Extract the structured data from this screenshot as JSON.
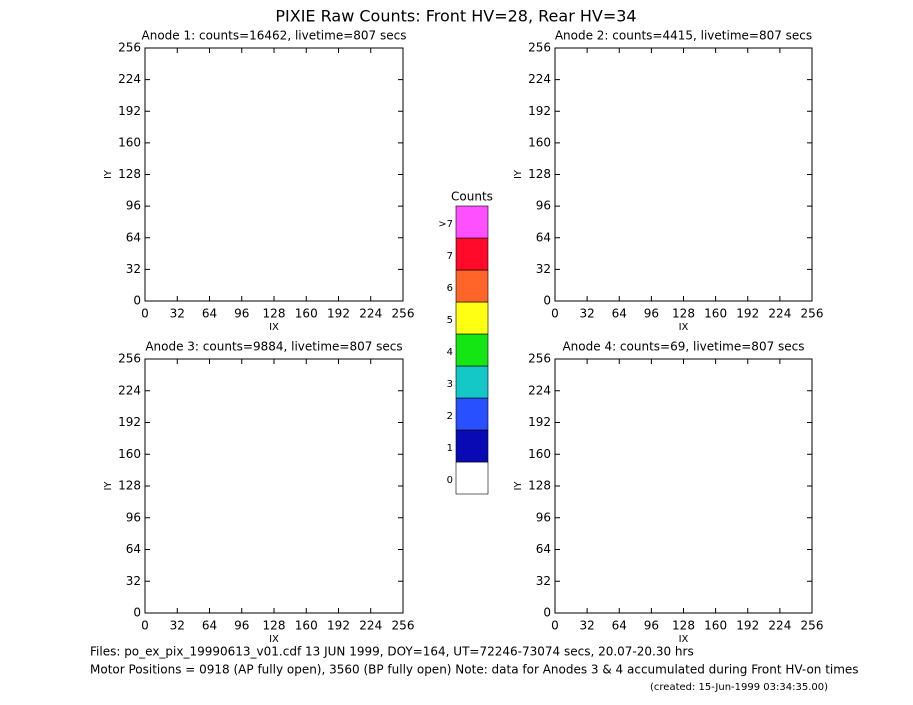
{
  "title": "PIXIE Raw Counts:  Front HV=28, Rear HV=34",
  "chart_data": [
    {
      "type": "image",
      "title": "Anode 1: counts=16462, livetime=807 secs",
      "xlabel": "IX",
      "ylabel": "IY",
      "xlim": [
        0,
        256
      ],
      "ylim": [
        0,
        256
      ],
      "xticks": [
        0,
        32,
        64,
        96,
        128,
        160,
        192,
        224,
        256
      ],
      "yticks": [
        0,
        32,
        64,
        96,
        128,
        160,
        192,
        224,
        256
      ]
    },
    {
      "type": "image",
      "title": "Anode 2: counts=4415, livetime=807 secs",
      "xlabel": "IX",
      "ylabel": "IY",
      "xlim": [
        0,
        256
      ],
      "ylim": [
        0,
        256
      ],
      "xticks": [
        0,
        32,
        64,
        96,
        128,
        160,
        192,
        224,
        256
      ],
      "yticks": [
        0,
        32,
        64,
        96,
        128,
        160,
        192,
        224,
        256
      ]
    },
    {
      "type": "image",
      "title": "Anode 3: counts=9884, livetime=807 secs",
      "xlabel": "IX",
      "ylabel": "IY",
      "xlim": [
        0,
        256
      ],
      "ylim": [
        0,
        256
      ],
      "xticks": [
        0,
        32,
        64,
        96,
        128,
        160,
        192,
        224,
        256
      ],
      "yticks": [
        0,
        32,
        64,
        96,
        128,
        160,
        192,
        224,
        256
      ]
    },
    {
      "type": "image",
      "title": "Anode 4: counts=69, livetime=807 secs",
      "xlabel": "IX",
      "ylabel": "IY",
      "xlim": [
        0,
        256
      ],
      "ylim": [
        0,
        256
      ],
      "xticks": [
        0,
        32,
        64,
        96,
        128,
        160,
        192,
        224,
        256
      ],
      "yticks": [
        0,
        32,
        64,
        96,
        128,
        160,
        192,
        224,
        256
      ]
    },
    {
      "type": "colorbar",
      "title": "Counts",
      "categories": [
        "0",
        "1",
        "2",
        "3",
        "4",
        "5",
        "6",
        "7",
        ">7"
      ],
      "colors": [
        "#ffffff",
        "#0a0ab4",
        "#2850ff",
        "#14c8c8",
        "#14e614",
        "#ffff14",
        "#ff6428",
        "#ff0a28",
        "#ff50ff"
      ]
    }
  ],
  "footer": [
    "Files: po_ex_pix_19990613_v01.cdf    13 JUN 1999, DOY=164, UT=72246-73074 secs, 20.07-20.30 hrs",
    "Motor Positions = 0918 (AP fully open), 3560 (BP fully open)    Note: data for Anodes 3 & 4 accumulated during Front HV-on times",
    "(created: 15-Jun-1999 03:34:35.00)"
  ]
}
